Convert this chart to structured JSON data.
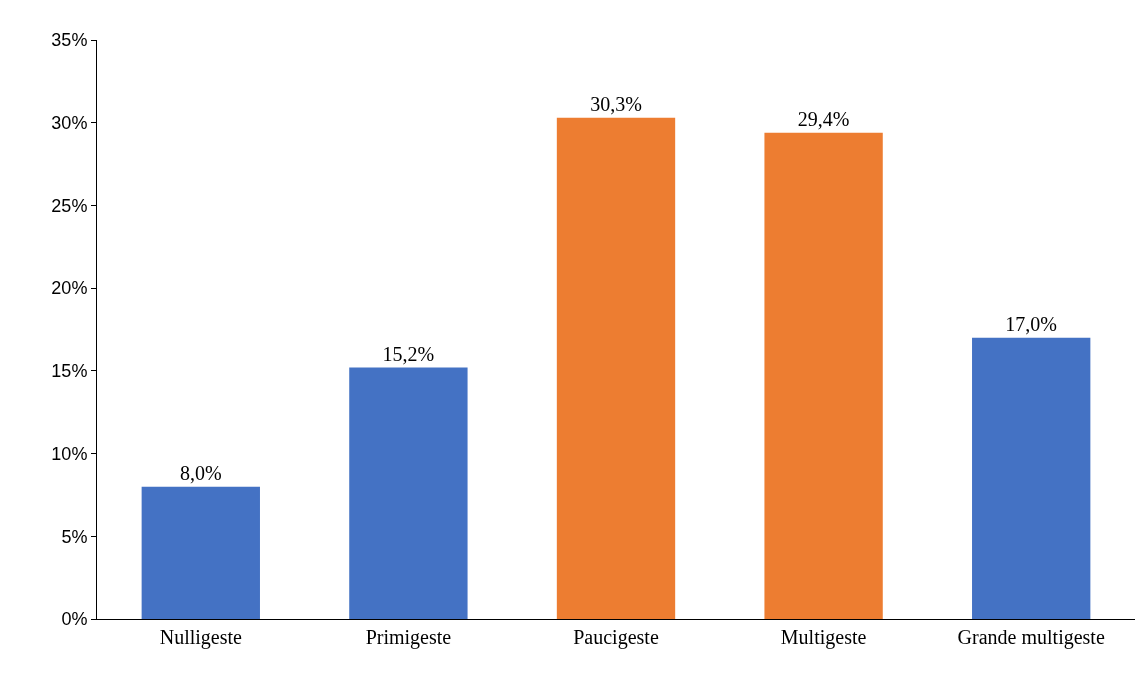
{
  "chart_data": {
    "type": "bar",
    "categories": [
      "Nulligeste",
      "Primigeste",
      "Paucigeste",
      "Multigeste",
      "Grande multigeste"
    ],
    "values": [
      8.0,
      15.2,
      30.3,
      29.4,
      17.0
    ],
    "colors": [
      "#4472c4",
      "#4472c4",
      "#ed7d31",
      "#ed7d31",
      "#4472c4"
    ],
    "value_labels": [
      "8,0%",
      "15,2%",
      "30,3%",
      "29,4%",
      "17,0%"
    ],
    "ylim": [
      0,
      35
    ],
    "yticks": [
      {
        "value": 0,
        "label": "0%"
      },
      {
        "value": 5,
        "label": "5%"
      },
      {
        "value": 10,
        "label": "10%"
      },
      {
        "value": 15,
        "label": "15%"
      },
      {
        "value": 20,
        "label": "20%"
      },
      {
        "value": 25,
        "label": "25%"
      },
      {
        "value": 30,
        "label": "30%"
      },
      {
        "value": 35,
        "label": "35%"
      }
    ],
    "legend": false
  }
}
